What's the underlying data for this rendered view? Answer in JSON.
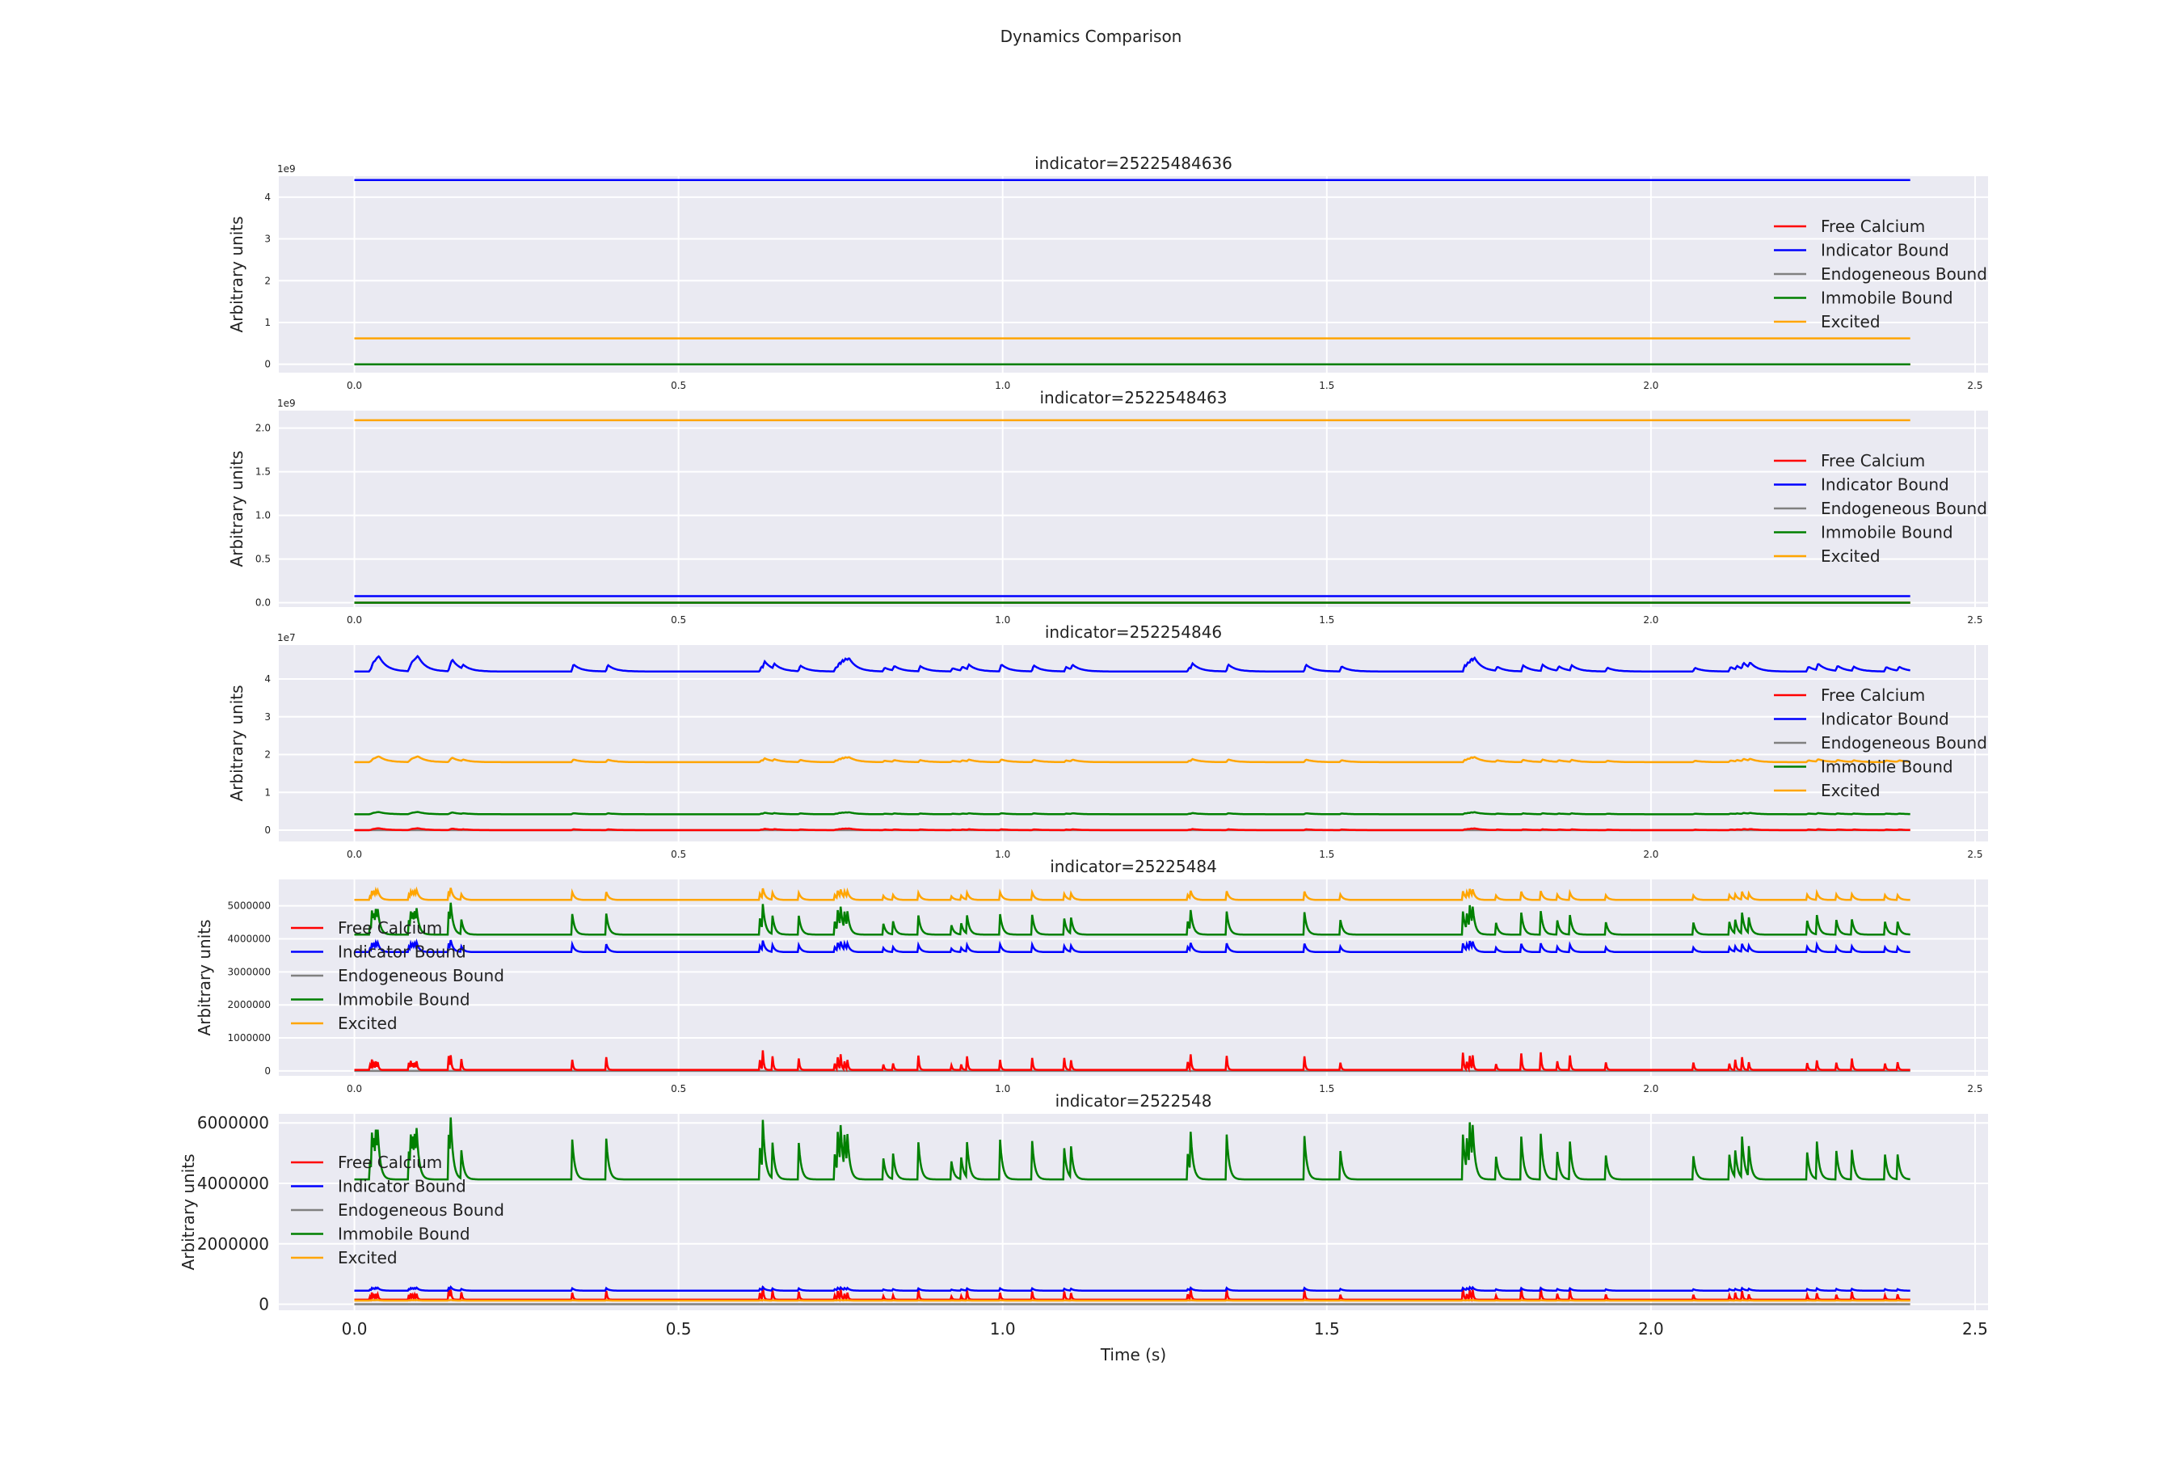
{
  "figure": {
    "title": "Dynamics Comparison"
  },
  "colors": {
    "Free Calcium": "#ff0000",
    "Indicator Bound": "#0000ff",
    "Endogeneous Bound": "#808080",
    "Immobile Bound": "#008000",
    "Excited": "#ffa500",
    "axes_bg": "#eaeaf2",
    "grid": "#ffffff"
  },
  "chart_data": [
    {
      "type": "line",
      "title": "indicator=25225484636",
      "xlabel": "",
      "ylabel": "Arbitrary units",
      "multiplier": "1e9",
      "xlim": [
        -0.1166,
        2.52
      ],
      "ylim": [
        -0.2,
        4.5
      ],
      "xticks": [
        0.0,
        0.5,
        1.0,
        1.5,
        2.0,
        2.5
      ],
      "xtick_labels": [
        "0.0",
        "0.5",
        "1.0",
        "1.5",
        "2.0",
        "2.5"
      ],
      "yticks": [
        0,
        1,
        2,
        3,
        4
      ],
      "ytick_labels": [
        "0",
        "1",
        "2",
        "3",
        "4"
      ],
      "tick_size": "small",
      "legend": "right",
      "spikes": "none",
      "series": [
        {
          "name": "Free Calcium",
          "baseline": 0.0
        },
        {
          "name": "Indicator Bound",
          "baseline": 4.41
        },
        {
          "name": "Endogeneous Bound",
          "baseline": 0.0
        },
        {
          "name": "Immobile Bound",
          "baseline": 0.0
        },
        {
          "name": "Excited",
          "baseline": 0.62
        }
      ]
    },
    {
      "type": "line",
      "title": "indicator=2522548463",
      "xlabel": "",
      "ylabel": "Arbitrary units",
      "multiplier": "1e9",
      "xlim": [
        -0.1166,
        2.52
      ],
      "ylim": [
        -0.05,
        2.2
      ],
      "xticks": [
        0.0,
        0.5,
        1.0,
        1.5,
        2.0,
        2.5
      ],
      "xtick_labels": [
        "0.0",
        "0.5",
        "1.0",
        "1.5",
        "2.0",
        "2.5"
      ],
      "yticks": [
        0.0,
        0.5,
        1.0,
        1.5,
        2.0
      ],
      "ytick_labels": [
        "0.0",
        "0.5",
        "1.0",
        "1.5",
        "2.0"
      ],
      "tick_size": "small",
      "legend": "right",
      "spikes": "none",
      "series": [
        {
          "name": "Free Calcium",
          "baseline": 0.0
        },
        {
          "name": "Indicator Bound",
          "baseline": 0.075
        },
        {
          "name": "Endogeneous Bound",
          "baseline": 0.0
        },
        {
          "name": "Immobile Bound",
          "baseline": 0.0
        },
        {
          "name": "Excited",
          "baseline": 2.09
        }
      ]
    },
    {
      "type": "line",
      "title": "indicator=252254846",
      "xlabel": "",
      "ylabel": "Arbitrary units",
      "multiplier": "1e7",
      "xlim": [
        -0.1166,
        2.52
      ],
      "ylim": [
        -0.3,
        4.9
      ],
      "xticks": [
        0.0,
        0.5,
        1.0,
        1.5,
        2.0,
        2.5
      ],
      "xtick_labels": [
        "0.0",
        "0.5",
        "1.0",
        "1.5",
        "2.0",
        "2.5"
      ],
      "yticks": [
        0,
        1,
        2,
        3,
        4
      ],
      "ytick_labels": [
        "0",
        "1",
        "2",
        "3",
        "4"
      ],
      "tick_size": "small",
      "legend": "right",
      "spikes": "bumps",
      "series": [
        {
          "name": "Free Calcium",
          "baseline": 0.0,
          "peak": 0.05
        },
        {
          "name": "Indicator Bound",
          "baseline": 4.2,
          "peak": 0.4
        },
        {
          "name": "Endogeneous Bound",
          "baseline": 0.0,
          "peak": 0.0
        },
        {
          "name": "Immobile Bound",
          "baseline": 0.42,
          "peak": 0.06
        },
        {
          "name": "Excited",
          "baseline": 1.8,
          "peak": 0.15
        }
      ]
    },
    {
      "type": "line",
      "title": "indicator=25225484",
      "xlabel": "",
      "ylabel": "Arbitrary units",
      "multiplier": "",
      "xlim": [
        -0.1166,
        2.52
      ],
      "ylim": [
        -150000,
        5800000
      ],
      "xticks": [
        0.0,
        0.5,
        1.0,
        1.5,
        2.0,
        2.5
      ],
      "xtick_labels": [
        "0.0",
        "0.5",
        "1.0",
        "1.5",
        "2.0",
        "2.5"
      ],
      "yticks": [
        0,
        1000000,
        2000000,
        3000000,
        4000000,
        5000000
      ],
      "ytick_labels": [
        "0",
        "1000000",
        "2000000",
        "3000000",
        "4000000",
        "5000000"
      ],
      "tick_size": "small",
      "legend": "left",
      "spikes": "sharp",
      "series": [
        {
          "name": "Free Calcium",
          "baseline": 30000,
          "peak": 600000
        },
        {
          "name": "Indicator Bound",
          "baseline": 3600000,
          "peak": 300000
        },
        {
          "name": "Endogeneous Bound",
          "baseline": 0,
          "peak": 0
        },
        {
          "name": "Immobile Bound",
          "baseline": 4130000,
          "peak": 800000
        },
        {
          "name": "Excited",
          "baseline": 5180000,
          "peak": 300000
        }
      ]
    },
    {
      "type": "line",
      "title": "indicator=2522548",
      "xlabel": "Time (s)",
      "ylabel": "Arbitrary units",
      "multiplier": "",
      "xlim": [
        -0.1166,
        2.52
      ],
      "ylim": [
        -200000,
        6300000
      ],
      "xticks": [
        0.0,
        0.5,
        1.0,
        1.5,
        2.0,
        2.5
      ],
      "xtick_labels": [
        "0.0",
        "0.5",
        "1.0",
        "1.5",
        "2.0",
        "2.5"
      ],
      "yticks": [
        0,
        2000000,
        4000000,
        6000000
      ],
      "ytick_labels": [
        "0",
        "2000000",
        "4000000",
        "6000000"
      ],
      "tick_size": "big",
      "legend": "left",
      "spikes": "sharp",
      "series": [
        {
          "name": "Free Calcium",
          "baseline": 150000,
          "peak": 450000
        },
        {
          "name": "Indicator Bound",
          "baseline": 450000,
          "peak": 100000
        },
        {
          "name": "Endogeneous Bound",
          "baseline": 0,
          "peak": 0
        },
        {
          "name": "Immobile Bound",
          "baseline": 4130000,
          "peak": 1700000
        },
        {
          "name": "Excited",
          "baseline": 120000,
          "peak": 20000
        }
      ]
    }
  ],
  "event_times": [
    0.023,
    0.026,
    0.029,
    0.032,
    0.035,
    0.083,
    0.086,
    0.089,
    0.092,
    0.095,
    0.145,
    0.148,
    0.165,
    0.335,
    0.388,
    0.625,
    0.63,
    0.645,
    0.685,
    0.74,
    0.745,
    0.75,
    0.755,
    0.76,
    0.815,
    0.83,
    0.87,
    0.92,
    0.935,
    0.945,
    0.995,
    1.045,
    1.095,
    1.105,
    1.285,
    1.29,
    1.345,
    1.465,
    1.52,
    1.71,
    1.715,
    1.72,
    1.725,
    1.76,
    1.8,
    1.83,
    1.855,
    1.875,
    1.93,
    2.065,
    2.12,
    2.13,
    2.14,
    2.15,
    2.24,
    2.255,
    2.285,
    2.31,
    2.36,
    2.38
  ],
  "duration": 2.4,
  "legend_entries": [
    "Free Calcium",
    "Indicator Bound",
    "Endogeneous Bound",
    "Immobile Bound",
    "Excited"
  ]
}
